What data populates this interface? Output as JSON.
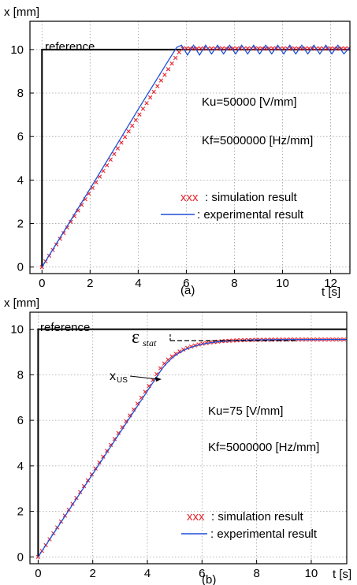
{
  "colors": {
    "background": "#ffffff",
    "axis": "#000000",
    "grid": "#a0a0a0",
    "reference": "#000000",
    "simulation": "#e8222a",
    "experimental": "#1f4fd8"
  },
  "chart_data": [
    {
      "type": "line",
      "panel_label": "(a)",
      "xlabel": "t [s]",
      "ylabel": "x [mm]",
      "xlim": [
        -0.5,
        12.8
      ],
      "ylim": [
        -0.3,
        11.3
      ],
      "xticks": [
        0,
        2,
        4,
        6,
        8,
        10,
        12
      ],
      "yticks": [
        0,
        2,
        4,
        6,
        8,
        10
      ],
      "grid": true,
      "annotations": {
        "reference": "reference",
        "ku": "Ku=50000 [V/mm]",
        "kf": "Kf=5000000 [Hz/mm]"
      },
      "legend": {
        "position": "right",
        "simulation_marker": "xxx",
        "simulation_label": ": simulation result",
        "experimental_label": ": experimental result"
      },
      "series": [
        {
          "role": "reference",
          "x": [
            0,
            0,
            12.8
          ],
          "y": [
            0,
            10,
            10
          ]
        },
        {
          "role": "simulation",
          "style": "x-markers",
          "x_start": 0,
          "x_end": 12.8,
          "step": 0.15,
          "ramp": {
            "t0": 0,
            "t1": 5.8,
            "y0": 0,
            "y1": 10.05
          },
          "plateau": 10.05
        },
        {
          "role": "experimental",
          "style": "line",
          "x": [
            0,
            2,
            4,
            5.2,
            5.6,
            5.8,
            6.05,
            6.3,
            6.55,
            6.8,
            7.05,
            7.3,
            7.55,
            7.8,
            8.05,
            8.3,
            8.55,
            8.8,
            9.05,
            9.3,
            9.55,
            9.8,
            10.05,
            10.3,
            10.55,
            10.8,
            11.05,
            11.3,
            11.55,
            11.8,
            12.05,
            12.3,
            12.55,
            12.8
          ],
          "y": [
            0,
            3.6,
            7.25,
            9.4,
            10.1,
            10.2,
            9.75,
            10.2,
            9.75,
            10.2,
            9.8,
            10.2,
            9.8,
            10.2,
            9.8,
            10.2,
            9.8,
            10.2,
            9.8,
            10.2,
            9.8,
            10.2,
            9.8,
            10.2,
            9.8,
            10.2,
            9.8,
            10.2,
            9.8,
            10.2,
            9.8,
            10.2,
            9.8,
            10.1
          ]
        }
      ]
    },
    {
      "type": "line",
      "panel_label": "(b)",
      "xlabel": "t [s]",
      "ylabel": "x [mm]",
      "xlim": [
        -0.3,
        11.3
      ],
      "ylim": [
        -0.3,
        10.75
      ],
      "xticks": [
        0,
        2,
        4,
        6,
        8,
        10
      ],
      "yticks": [
        0,
        2,
        4,
        6,
        8,
        10
      ],
      "grid": true,
      "annotations": {
        "reference": "reference",
        "epsilon": "ε",
        "epsilon_subscript": "stat",
        "xus_main": "x",
        "xus_subscript": "US",
        "ku": "Ku=75 [V/mm]",
        "kf": "Kf=5000000 [Hz/mm]"
      },
      "legend": {
        "position": "lower-right",
        "simulation_marker": "xxx",
        "simulation_label": ": simulation result",
        "experimental_label": ": experimental result"
      },
      "series": [
        {
          "role": "reference",
          "x": [
            0,
            0,
            11.3
          ],
          "y": [
            0,
            10,
            10
          ]
        },
        {
          "role": "simulation",
          "style": "x-markers",
          "x_start": 0,
          "x_end": 11.3,
          "step": 0.14,
          "model": {
            "ramp_end": 4.5,
            "slope": 1.85,
            "final": 9.55,
            "tau": 0.8
          }
        },
        {
          "role": "experimental",
          "style": "line",
          "model": {
            "ramp_end": 4.5,
            "slope": 1.85,
            "final": 9.55,
            "tau": 0.8
          }
        }
      ],
      "steady_state_value": 9.55
    }
  ]
}
